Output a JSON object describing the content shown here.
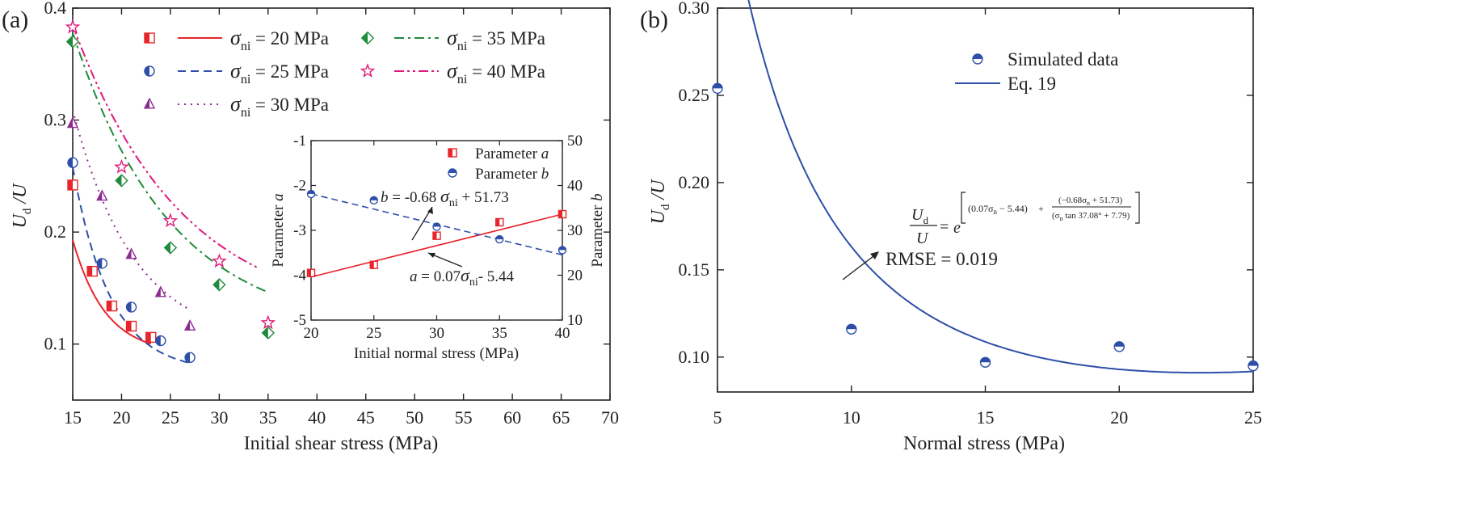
{
  "chart_data": [
    {
      "panel": "a",
      "type": "scatter",
      "panel_label": "(a)",
      "xlabel": "Initial shear stress (MPa)",
      "ylabel": "U_d /U",
      "ylabel_main": "U",
      "ylabel_sub": "d",
      "ylabel_tail": " /U",
      "xlim": [
        15,
        70
      ],
      "ylim": [
        0.05,
        0.4
      ],
      "xticks": [
        15,
        20,
        25,
        30,
        35,
        40,
        45,
        50,
        55,
        60,
        65,
        70
      ],
      "yticks": [
        0.1,
        0.2,
        0.3,
        0.4
      ],
      "series": [
        {
          "name": "σni = 20 MPa",
          "sigma": "σ",
          "sub": "ni",
          "suffix": " = 20 MPa",
          "color": "#e8252b",
          "marker": "half-square",
          "dash": "",
          "x": [
            15,
            17,
            19,
            21,
            23
          ],
          "y": [
            0.242,
            0.165,
            0.134,
            0.116,
            0.106
          ],
          "fit_x": [
            15,
            23
          ],
          "fit_a": 0.102,
          "fit_b": 0.3,
          "fit_c": 0.091
        },
        {
          "name": "σni = 25 MPa",
          "sigma": "σ",
          "sub": "ni",
          "suffix": " = 25 MPa",
          "color": "#2e4fa8",
          "marker": "half-circle",
          "dash": "10 6",
          "x": [
            15,
            18,
            21,
            24,
            27
          ],
          "y": [
            0.262,
            0.172,
            0.133,
            0.103,
            0.088
          ],
          "fit_x": [
            15,
            27
          ],
          "fit_a": 0.183,
          "fit_b": 0.26,
          "fit_c": 0.075
        },
        {
          "name": "σni = 30 MPa",
          "sigma": "σ",
          "sub": "ni",
          "suffix": " = 30 MPa",
          "color": "#8b2a8f",
          "marker": "half-triangle",
          "dash": "2 6",
          "x": [
            15,
            18,
            21,
            24,
            27
          ],
          "y": [
            0.297,
            0.232,
            0.18,
            0.146,
            0.116
          ],
          "fit_x": [
            15,
            27
          ],
          "fit_a": 0.209,
          "fit_b": 0.16,
          "fit_c": 0.1
        },
        {
          "name": "σni = 35 MPa",
          "sigma": "σ",
          "sub": "ni",
          "suffix": " = 35 MPa",
          "color": "#1f8a3a",
          "marker": "half-diamond",
          "dash": "12 5 3 5",
          "x": [
            15,
            20,
            25,
            30,
            35
          ],
          "y": [
            0.37,
            0.246,
            0.186,
            0.153,
            0.11
          ],
          "fit_x": [
            15,
            35
          ],
          "fit_a": 0.268,
          "fit_b": 0.1,
          "fit_c": 0.11
        },
        {
          "name": "σni = 40 MPa",
          "sigma": "σ",
          "sub": "ni",
          "suffix": " = 40 MPa",
          "color": "#e0197a",
          "marker": "star",
          "dash": "12 4 3 4 3 4",
          "x": [
            15,
            20,
            25,
            30,
            35
          ],
          "y": [
            0.383,
            0.258,
            0.21,
            0.174,
            0.119
          ],
          "fit_x": [
            15,
            34
          ],
          "fit_a": 0.265,
          "fit_b": 0.09,
          "fit_c": 0.12
        }
      ]
    },
    {
      "panel": "a-inset",
      "type": "scatter",
      "xlabel": "Initial normal stress (MPa)",
      "ylabel_left": "Parameter a",
      "ylabel_left_pre": "Parameter ",
      "ylabel_left_var": "a",
      "ylabel_right": "Parameter b",
      "ylabel_right_pre": "Parameter ",
      "ylabel_right_var": "b",
      "xlim": [
        20,
        40
      ],
      "ylim_left": [
        -5,
        -1
      ],
      "ylim_right": [
        10,
        50
      ],
      "xticks": [
        20,
        25,
        30,
        35,
        40
      ],
      "yticks_left": [
        -5,
        -4,
        -3,
        -2,
        -1
      ],
      "yticks_right": [
        10,
        20,
        30,
        40,
        50
      ],
      "series": [
        {
          "name": "Parameter a",
          "label_pre": "Parameter ",
          "label_var": "a",
          "color": "#e8252b",
          "axis": "left",
          "x": [
            20,
            25,
            30,
            35,
            40
          ],
          "y": [
            -3.95,
            -3.77,
            -3.12,
            -2.82,
            -2.64
          ],
          "fit_slope": 0.07,
          "fit_intercept": -5.44
        },
        {
          "name": "Parameter b",
          "label_pre": "Parameter ",
          "label_var": "b",
          "color": "#2e4fa8",
          "axis": "right",
          "x": [
            20,
            25,
            30,
            35,
            40
          ],
          "y": [
            38.1,
            36.7,
            30.8,
            28.0,
            25.6
          ],
          "fit_slope": -0.68,
          "fit_intercept": 51.73
        }
      ],
      "annotations": {
        "b_eq": {
          "var": "b",
          "mid": " = -0.68 ",
          "sigma": "σ",
          "sub": "ni",
          "tail": " + 51.73"
        },
        "a_eq": {
          "var": "a",
          "mid": " = 0.07",
          "sigma": "σ",
          "sub": "ni",
          "tail": "- 5.44"
        }
      }
    },
    {
      "panel": "b",
      "type": "scatter",
      "panel_label": "(b)",
      "xlabel": "Normal stress (MPa)",
      "ylabel": "U_d /U",
      "ylabel_main": "U",
      "ylabel_sub": "d",
      "ylabel_tail": " /U",
      "xlim": [
        5,
        25
      ],
      "ylim": [
        0.08,
        0.3
      ],
      "xticks": [
        5,
        10,
        15,
        20,
        25
      ],
      "yticks": [
        0.1,
        0.15,
        0.2,
        0.25,
        0.3
      ],
      "ytick_labels": [
        "0.10",
        "0.15",
        "0.20",
        "0.25",
        "0.30"
      ],
      "series": [
        {
          "name": "Simulated data",
          "color": "#2e4fa8",
          "marker": "half-circle",
          "x": [
            5,
            10,
            15,
            20,
            25
          ],
          "y": [
            0.254,
            0.116,
            0.097,
            0.106,
            0.095
          ]
        },
        {
          "name": "Eq. 19",
          "color": "#2e4fa8",
          "type": "line",
          "formula": "exp((0.07*s-5.44)+(-0.68*s+51.73)/(s*tan(37.08deg)+7.79))"
        }
      ],
      "annotations": {
        "rmse": "RMSE = 0.019",
        "eq_lhs_num": "U",
        "eq_lhs_num_sub": "d",
        "eq_lhs_den": "U",
        "eq_equals": "=",
        "eq_e": "e",
        "eq_term1": "(0.07σ",
        "eq_term1_sub": "n",
        "eq_term1_tail": " − 5.44)",
        "eq_plus": "+",
        "eq_num": "(−0.68σ",
        "eq_num_sub": "n",
        "eq_num_tail": " + 51.73)",
        "eq_den": "(σ",
        "eq_den_sub": "n",
        "eq_den_tail": " tan 37.08° + 7.79)"
      }
    }
  ]
}
